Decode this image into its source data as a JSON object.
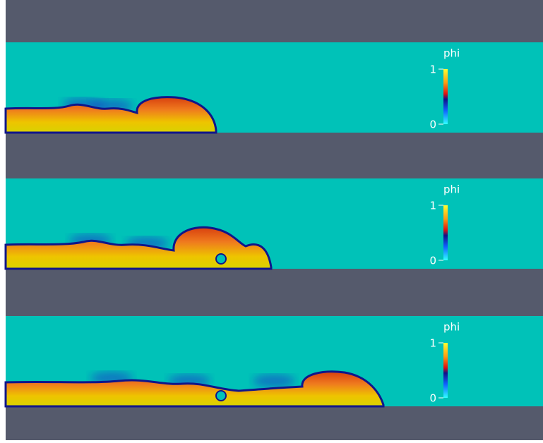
{
  "panels": [
    {
      "colorbar": {
        "title": "phi",
        "max": "1",
        "min": "0"
      }
    },
    {
      "colorbar": {
        "title": "phi",
        "max": "1",
        "min": "0"
      }
    },
    {
      "colorbar": {
        "title": "phi",
        "max": "1",
        "min": "0"
      }
    }
  ]
}
